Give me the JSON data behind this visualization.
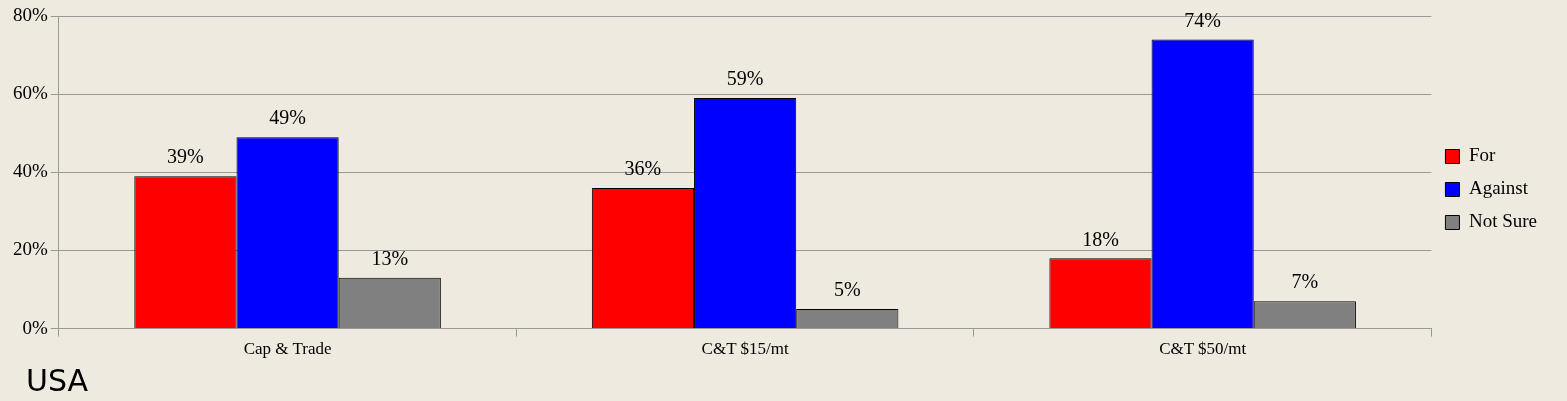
{
  "chart_data": {
    "type": "bar",
    "categories": [
      "Cap & Trade",
      "C&T $15/mt",
      "C&T $50/mt"
    ],
    "series": [
      {
        "name": "For",
        "color": "#ff0000",
        "values": [
          39,
          36,
          18
        ],
        "value_labels": [
          "39%",
          "36%",
          "18%"
        ]
      },
      {
        "name": "Against",
        "color": "#0000ff",
        "values": [
          49,
          59,
          74
        ],
        "value_labels": [
          "49%",
          "59%",
          "74%"
        ]
      },
      {
        "name": "Not Sure",
        "color": "#808080",
        "values": [
          13,
          5,
          7
        ],
        "value_labels": [
          "13%",
          "5%",
          "7%"
        ]
      }
    ],
    "ylim": [
      0,
      80
    ],
    "yticks": [
      {
        "value": 0,
        "label": "0%"
      },
      {
        "value": 20,
        "label": "20%"
      },
      {
        "value": 40,
        "label": "40%"
      },
      {
        "value": 60,
        "label": "60%"
      },
      {
        "value": 80,
        "label": "80%"
      }
    ],
    "grid": "y",
    "legend": "right",
    "annotations": [
      "USA"
    ]
  }
}
